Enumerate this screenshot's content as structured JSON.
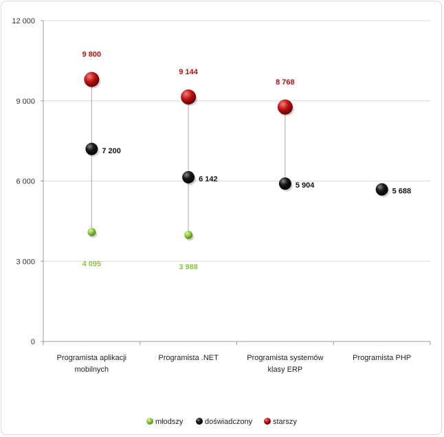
{
  "chart_data": {
    "type": "scatter",
    "categories": [
      [
        "Programista aplikacji",
        "mobilnych"
      ],
      [
        "Programista .NET"
      ],
      [
        "Programista systemów",
        "klasy ERP"
      ],
      [
        "Programista PHP"
      ]
    ],
    "ylim": [
      0,
      12000
    ],
    "yticks": [
      {
        "value": 0,
        "label": "0"
      },
      {
        "value": 3000,
        "label": "3 000"
      },
      {
        "value": 6000,
        "label": "6 000"
      },
      {
        "value": 9000,
        "label": "9 000"
      },
      {
        "value": 12000,
        "label": "12 000"
      }
    ],
    "grid": true,
    "legend_position": "bottom",
    "series": [
      {
        "name": "młodszy",
        "color": "#8cc63e",
        "values": [
          4095,
          3988,
          null,
          null
        ],
        "labels": [
          "4 095",
          "3 988",
          null,
          null
        ]
      },
      {
        "name": "doświadczony",
        "color": "#111111",
        "values": [
          7200,
          6142,
          5904,
          5688
        ],
        "labels": [
          "7 200",
          "6 142",
          "5 904",
          "5 688"
        ]
      },
      {
        "name": "starszy",
        "color": "#b01010",
        "values": [
          9800,
          9144,
          8768,
          null
        ],
        "labels": [
          "9 800",
          "9 144",
          "8 768",
          null
        ]
      }
    ]
  }
}
